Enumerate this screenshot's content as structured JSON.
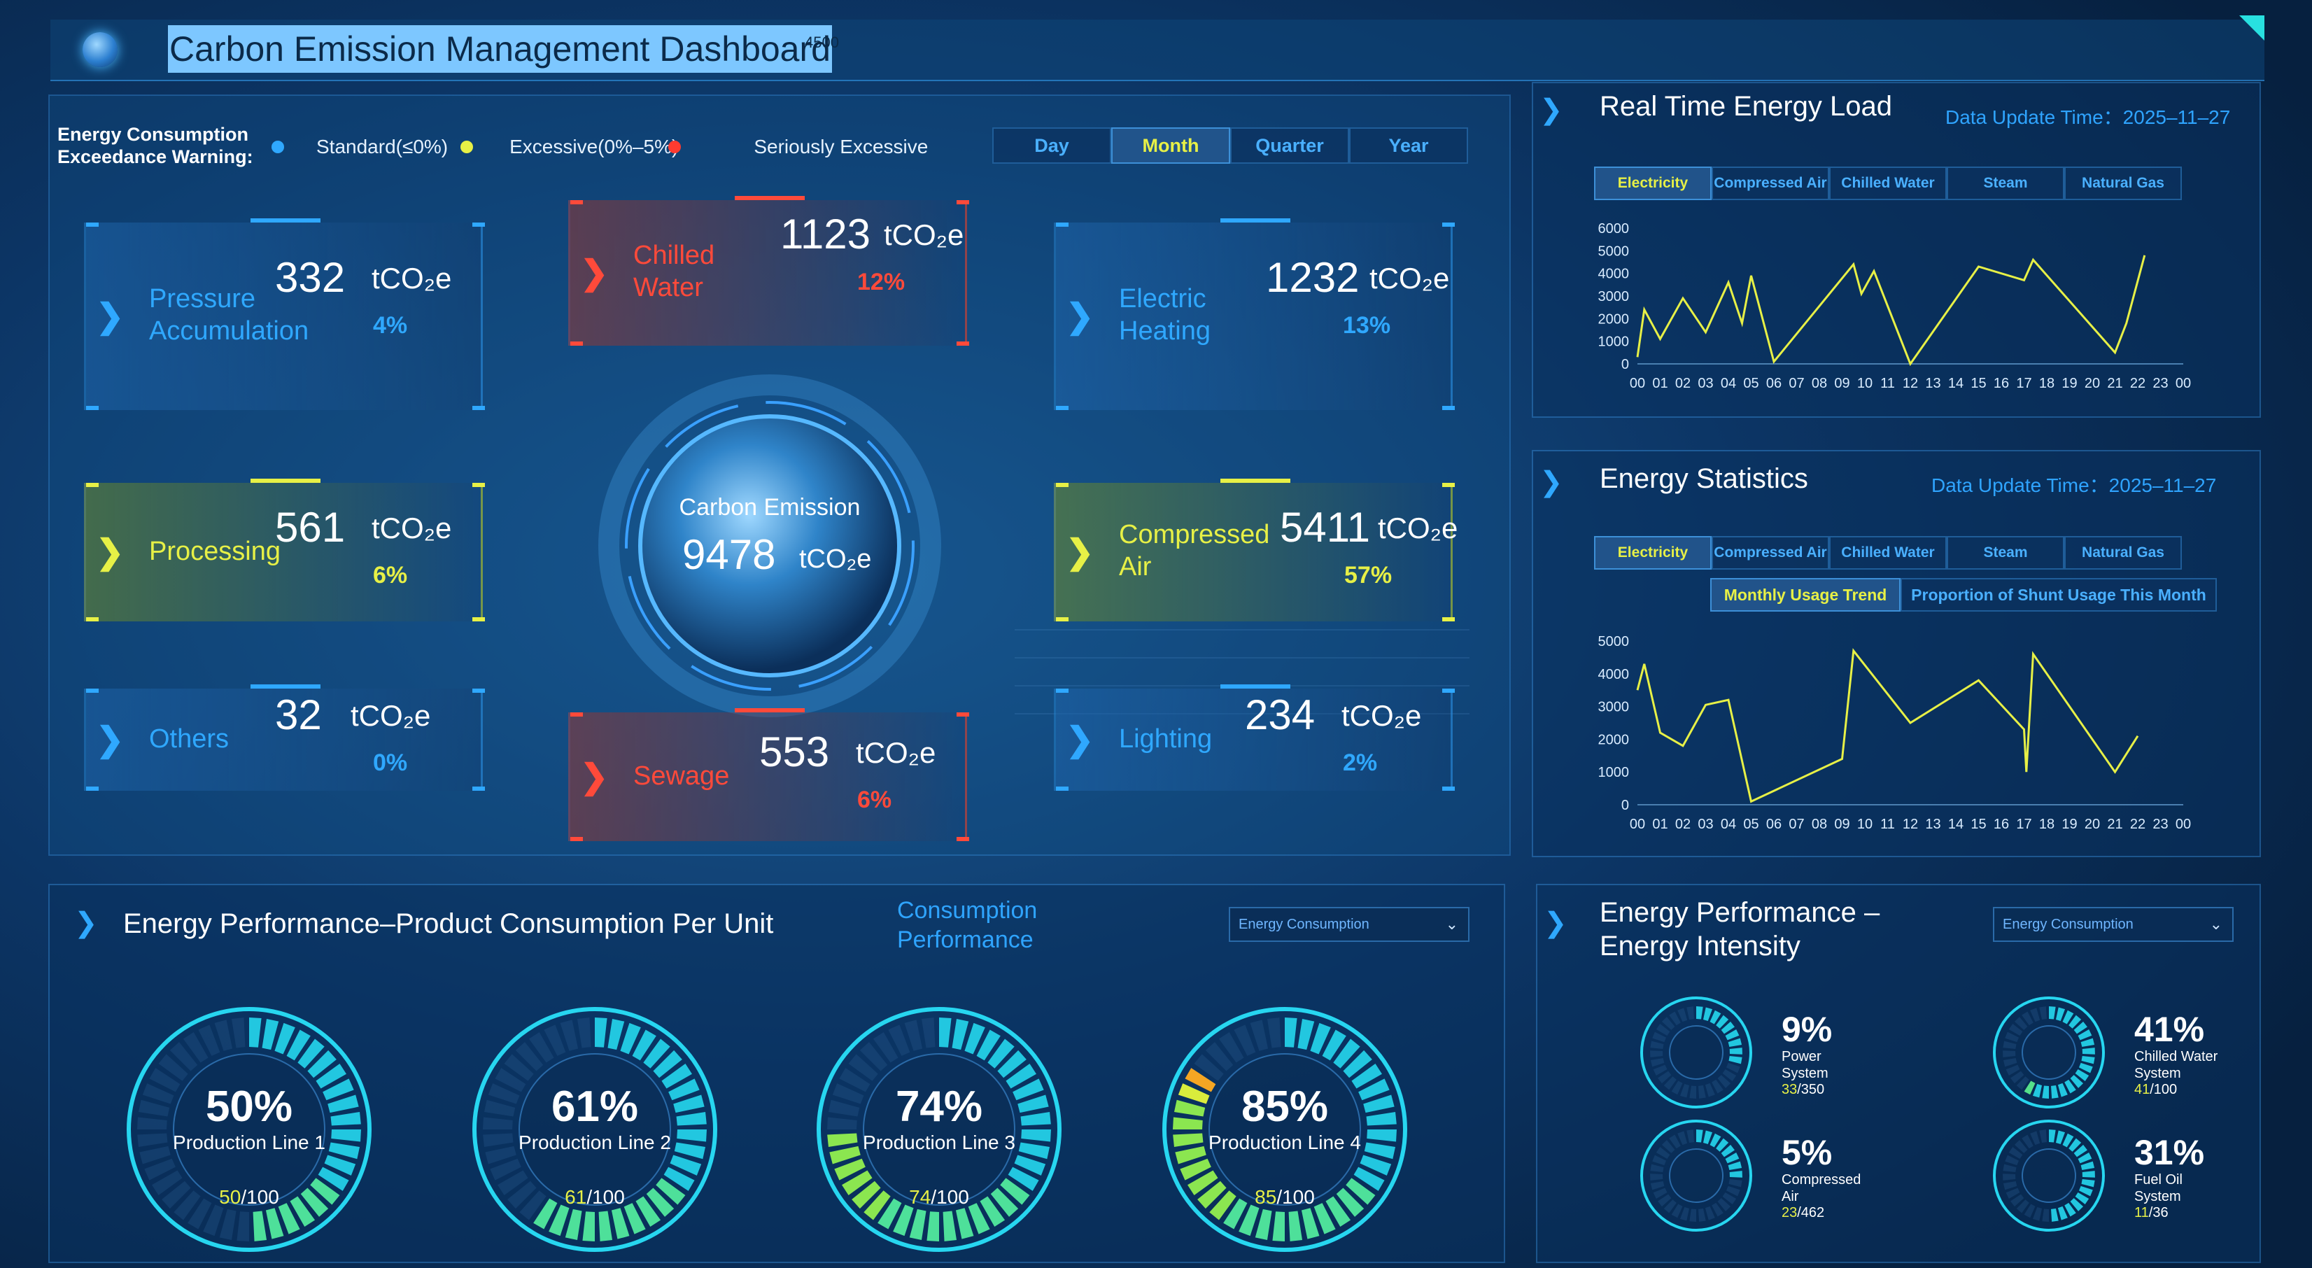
{
  "header": {
    "title": "Carbon Emission Management Dashboard",
    "overlay_number": "4500"
  },
  "warning": {
    "label_line1": "Energy Consumption",
    "label_line2": "Exceedance Warning:",
    "items": [
      {
        "label": "Standard(≤0%)",
        "color": "#2fa8ff"
      },
      {
        "label": "Excessive(0%–5%)",
        "color": "#e7f046"
      },
      {
        "label": "Seriously Excessive",
        "color": "#ff3b30"
      }
    ]
  },
  "period_tabs": [
    "Day",
    "Month",
    "Quarter",
    "Year"
  ],
  "period_active": "Month",
  "center": {
    "label": "Carbon Emission",
    "value": "9478",
    "unit": "tCO₂e"
  },
  "cards": [
    {
      "name1": "Pressure",
      "name2": "Accumulation",
      "value": "332",
      "unit": "tCO₂e",
      "pct": "4%",
      "status": "standard"
    },
    {
      "name1": "Chilled",
      "name2": "Water",
      "value": "1123",
      "unit": "tCO₂e",
      "pct": "12%",
      "status": "serious"
    },
    {
      "name1": "Electric",
      "name2": "Heating",
      "value": "1232",
      "unit": "tCO₂e",
      "pct": "13%",
      "status": "standard"
    },
    {
      "name1": "Processing",
      "name2": "",
      "value": "561",
      "unit": "tCO₂e",
      "pct": "6%",
      "status": "excessive"
    },
    {
      "name1": "Compressed",
      "name2": "Air",
      "value": "5411",
      "unit": "tCO₂e",
      "pct": "57%",
      "status": "excessive"
    },
    {
      "name1": "Others",
      "name2": "",
      "value": "32",
      "unit": "tCO₂e",
      "pct": "0%",
      "status": "standard"
    },
    {
      "name1": "Sewage",
      "name2": "",
      "value": "553",
      "unit": "tCO₂e",
      "pct": "6%",
      "status": "serious"
    },
    {
      "name1": "Lighting",
      "name2": "",
      "value": "234",
      "unit": "tCO₂e",
      "pct": "2%",
      "status": "standard"
    }
  ],
  "realtime": {
    "title": "Real Time Energy Load",
    "update": "Data Update Time：2025–11–27",
    "tabs": [
      "Electricity",
      "Compressed Air",
      "Chilled Water",
      "Steam",
      "Natural Gas"
    ],
    "active": "Electricity"
  },
  "statistics": {
    "title": "Energy Statistics",
    "update": "Data Update Time：2025–11–27",
    "tabs": [
      "Electricity",
      "Compressed Air",
      "Chilled Water",
      "Steam",
      "Natural Gas"
    ],
    "active": "Electricity",
    "subtabs": [
      "Monthly Usage Trend",
      "Proportion of Shunt Usage This Month"
    ],
    "sub_active": "Monthly Usage Trend"
  },
  "chart_data": [
    {
      "type": "line",
      "x": [
        "00",
        "01",
        "02",
        "03",
        "04",
        "05",
        "06",
        "07",
        "08",
        "09",
        "10",
        "11",
        "12",
        "13",
        "14",
        "15",
        "16",
        "17",
        "18",
        "19",
        "20",
        "21",
        "22",
        "23",
        "00"
      ],
      "ylim": [
        0,
        6000
      ],
      "yticks": [
        0,
        1000,
        2000,
        3000,
        4000,
        5000,
        6000
      ],
      "series": [
        {
          "points": [
            [
              0,
              300
            ],
            [
              0.3,
              2400
            ],
            [
              1,
              1100
            ],
            [
              2,
              2900
            ],
            [
              3,
              1400
            ],
            [
              4,
              3600
            ],
            [
              4.6,
              1800
            ],
            [
              5,
              3900
            ],
            [
              6,
              100
            ],
            [
              9.5,
              4400
            ],
            [
              9.85,
              3100
            ],
            [
              10.4,
              4100
            ],
            [
              12,
              0
            ],
            [
              15,
              4300
            ],
            [
              17,
              3700
            ],
            [
              17.4,
              4600
            ],
            [
              21,
              500
            ],
            [
              21.5,
              1800
            ],
            [
              22.3,
              4800
            ]
          ],
          "color": "#e7f046"
        }
      ]
    },
    {
      "type": "line",
      "x": [
        "00",
        "01",
        "02",
        "03",
        "04",
        "05",
        "06",
        "07",
        "08",
        "09",
        "10",
        "11",
        "12",
        "13",
        "14",
        "15",
        "16",
        "17",
        "18",
        "19",
        "20",
        "21",
        "22",
        "23",
        "00"
      ],
      "ylim": [
        0,
        5000
      ],
      "yticks": [
        0,
        1000,
        2000,
        3000,
        4000,
        5000
      ],
      "series": [
        {
          "points": [
            [
              0,
              3500
            ],
            [
              0.3,
              4300
            ],
            [
              1,
              2200
            ],
            [
              2,
              1800
            ],
            [
              3,
              3050
            ],
            [
              4,
              3200
            ],
            [
              5,
              100
            ],
            [
              9,
              1400
            ],
            [
              9.5,
              4700
            ],
            [
              12,
              2500
            ],
            [
              15,
              3800
            ],
            [
              17,
              2300
            ],
            [
              17.1,
              1000
            ],
            [
              17.4,
              4600
            ],
            [
              21,
              1000
            ],
            [
              22,
              2100
            ]
          ],
          "color": "#e7f046"
        }
      ]
    }
  ],
  "product": {
    "title": "Energy Performance–Product Consumption Per Unit",
    "side_label_1": "Consumption",
    "side_label_2": "Performance",
    "select": "Energy Consumption",
    "gauges": [
      {
        "pct": "50%",
        "label": "Production Line 1",
        "current": "50",
        "total": "/100",
        "fraction": 0.5
      },
      {
        "pct": "61%",
        "label": "Production Line 2",
        "current": "61",
        "total": "/100",
        "fraction": 0.61
      },
      {
        "pct": "74%",
        "label": "Production Line 3",
        "current": "74",
        "total": "/100",
        "fraction": 0.74
      },
      {
        "pct": "85%",
        "label": "Production Line 4",
        "current": "85",
        "total": "/100",
        "fraction": 0.85
      }
    ]
  },
  "intensity": {
    "title_1": "Energy Performance –",
    "title_2": "Energy Intensity",
    "select": "Energy Consumption",
    "gauges": [
      {
        "pct": "9%",
        "label1": "Power",
        "label2": "System",
        "current": "33",
        "total": "/350",
        "fraction": 0.09
      },
      {
        "pct": "41%",
        "label1": "Chilled Water",
        "label2": "System",
        "current": "41",
        "total": "/100",
        "fraction": 0.41
      },
      {
        "pct": "5%",
        "label1": "Compressed",
        "label2": "Air",
        "current": "23",
        "total": "/462",
        "fraction": 0.05
      },
      {
        "pct": "31%",
        "label1": "Fuel Oil",
        "label2": "System",
        "current": "11",
        "total": "/36",
        "fraction": 0.31
      }
    ]
  }
}
